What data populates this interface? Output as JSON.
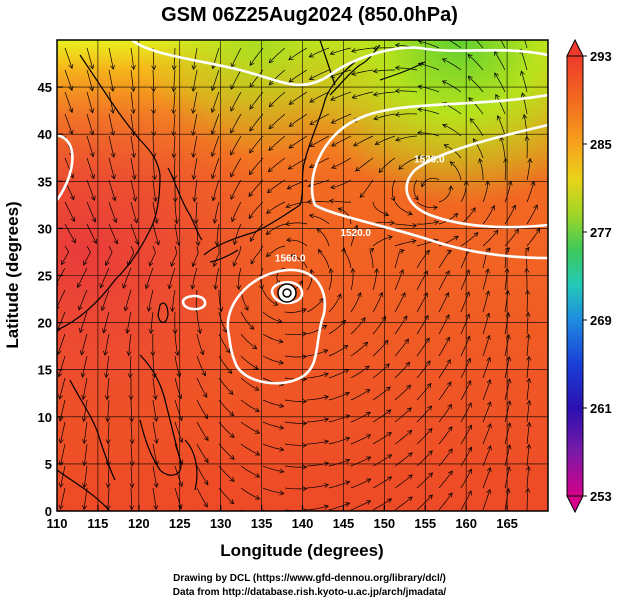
{
  "title": "GSM 06Z25Aug2024 (850.0hPa)",
  "x_axis": {
    "label": "Longitude (degrees)",
    "range": [
      110,
      170
    ],
    "ticks": [
      "110",
      "115",
      "120",
      "125",
      "130",
      "135",
      "140",
      "145",
      "150",
      "155",
      "160",
      "165"
    ],
    "tick_values": [
      110,
      115,
      120,
      125,
      130,
      135,
      140,
      145,
      150,
      155,
      160,
      165
    ]
  },
  "y_axis": {
    "label": "Latitude  (degrees)",
    "range": [
      0,
      50
    ],
    "ticks": [
      "0",
      "5",
      "10",
      "15",
      "20",
      "25",
      "30",
      "35",
      "40",
      "45"
    ],
    "tick_values": [
      0,
      5,
      10,
      15,
      20,
      25,
      30,
      35,
      40,
      45
    ]
  },
  "colorbar": {
    "ticks": [
      "293",
      "285",
      "277",
      "269",
      "261",
      "253"
    ],
    "tick_values": [
      293,
      285,
      277,
      269,
      261,
      253
    ],
    "colors": [
      "#d6007f",
      "#5a0a9a",
      "#1a1ad0",
      "#1f8be0",
      "#22c2c9",
      "#2bcc70",
      "#7fd624",
      "#c8e11a",
      "#f2c715",
      "#f7921c",
      "#f26a1e",
      "#ee4a2c"
    ]
  },
  "contour_labels": [
    {
      "text": "1520.0",
      "lon": 146.5,
      "lat": 29.2
    },
    {
      "text": "1560.0",
      "lon": 138.5,
      "lat": 26.5
    },
    {
      "text": "1520.0",
      "lon": 155.5,
      "lat": 37.0
    }
  ],
  "typhoon_center": {
    "lon": 138.0,
    "lat": 25.0
  },
  "credits": {
    "line1": "Drawing by DCL (https://www.gfd-dennou.org/library/dcl/)",
    "line2": "Data from http://database.rish.kyoto-u.ac.jp/arch/jmadata/"
  }
}
